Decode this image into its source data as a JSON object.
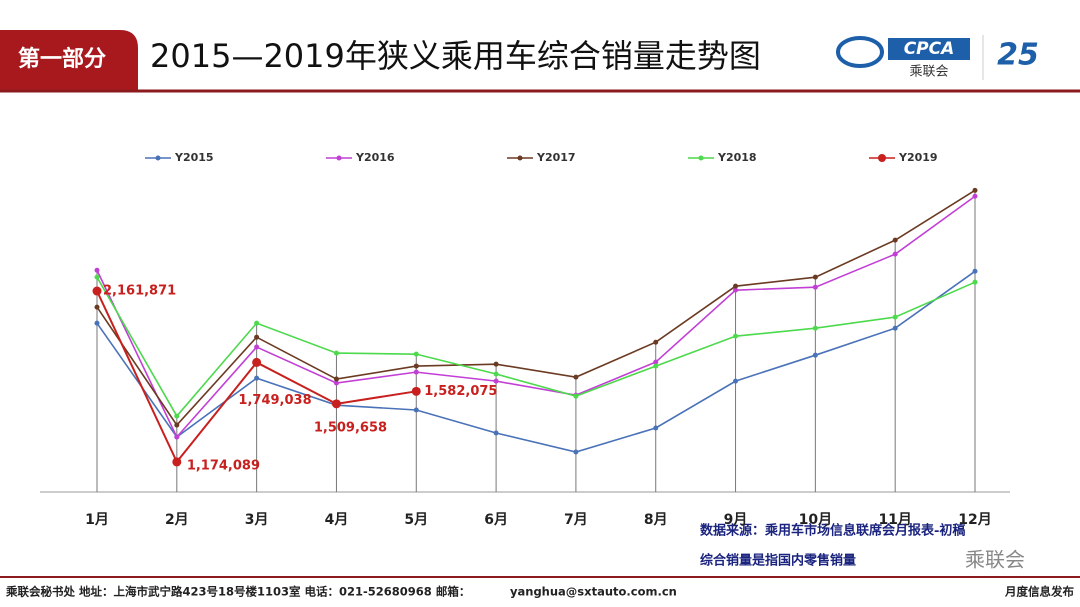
{
  "header": {
    "section": "第一部分",
    "title": "2015—2019年狭义乘用车综合销量走势图",
    "logo_text": "CPCA",
    "logo_name": "乘联会"
  },
  "chart_data": {
    "type": "line",
    "categories": [
      "1月",
      "2月",
      "3月",
      "4月",
      "5月",
      "6月",
      "7月",
      "8月",
      "9月",
      "10月",
      "11月",
      "12月"
    ],
    "ylim": [
      1000000,
      2850000
    ],
    "series": [
      {
        "name": "Y2015",
        "color": "#4a72b8",
        "values": [
          1976000,
          1318000,
          1658000,
          1502000,
          1474000,
          1341000,
          1231000,
          1370000,
          1641000,
          1791000,
          1947000,
          2276000
        ]
      },
      {
        "name": "Y2016",
        "color": "#c23fd6",
        "values": [
          2282000,
          1318000,
          1838000,
          1630000,
          1693000,
          1641000,
          1560000,
          1751000,
          2167000,
          2184000,
          2375000,
          2710000
        ]
      },
      {
        "name": "Y2017",
        "color": "#6b3a22",
        "values": [
          2069000,
          1387000,
          1895000,
          1653000,
          1728000,
          1739000,
          1664000,
          1866000,
          2190000,
          2242000,
          2456000,
          2744000
        ]
      },
      {
        "name": "Y2018",
        "color": "#4cd94c",
        "values": [
          2242000,
          1439000,
          1976000,
          1803000,
          1797000,
          1682000,
          1554000,
          1728000,
          1901000,
          1947000,
          2011000,
          2213000
        ]
      },
      {
        "name": "Y2019",
        "color": "#c8201e",
        "values": [
          2161871,
          1174089,
          1749038,
          1509658,
          1582075,
          null,
          null,
          null,
          null,
          null,
          null,
          null
        ],
        "value_labels": [
          "2,161,871",
          "1,174,089",
          "1,749,038",
          "1,509,658",
          "1,582,075",
          null,
          null,
          null,
          null,
          null,
          null,
          null
        ]
      }
    ]
  },
  "notes": [
    "数据来源：乘用车市场信息联席会月报表-初稿",
    "综合销量是指国内零售销量"
  ],
  "watermark": "乘联会",
  "footer": {
    "address": "乘联会秘书处   地址：上海市武宁路423号18号楼1103室  电话：021-52680968   邮箱：",
    "email": "yanghua@sxtauto.com.cn",
    "right": "月度信息发布"
  }
}
